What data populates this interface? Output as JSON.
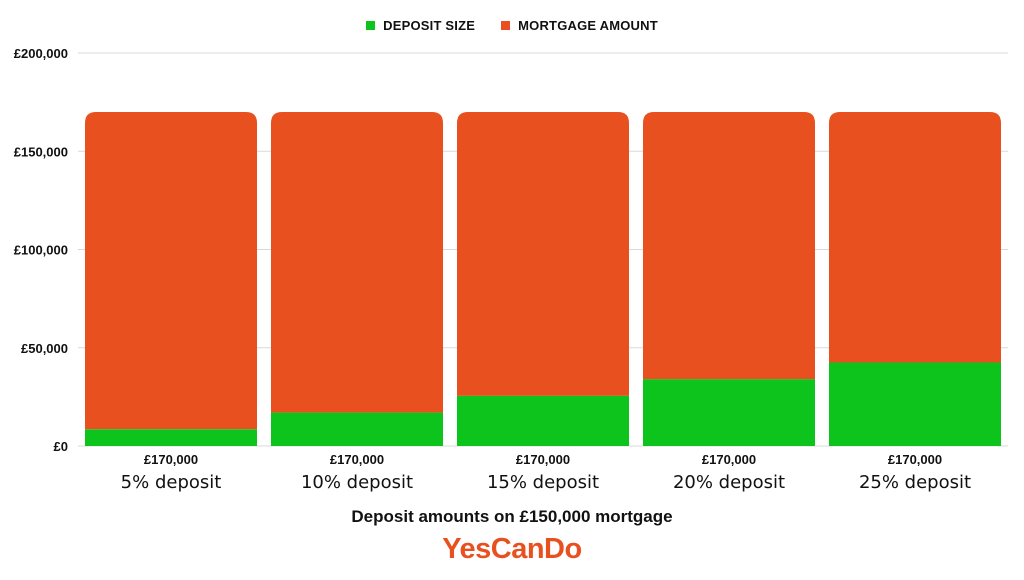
{
  "legend": [
    {
      "label": "DEPOSIT SIZE",
      "color": "#0cc41c"
    },
    {
      "label": "MORTGAGE AMOUNT",
      "color": "#e8511f"
    }
  ],
  "chart_data": {
    "type": "bar",
    "stacked": true,
    "categories": [
      "5% deposit",
      "10% deposit",
      "15% deposit",
      "20% deposit",
      "25% deposit"
    ],
    "series": [
      {
        "name": "DEPOSIT SIZE",
        "color": "#0cc41c",
        "values": [
          8500,
          17000,
          25500,
          34000,
          42500
        ]
      },
      {
        "name": "MORTGAGE AMOUNT",
        "color": "#e8511f",
        "values": [
          161500,
          153000,
          144500,
          136000,
          127500
        ]
      }
    ],
    "totals_labels": [
      "£170,000",
      "£170,000",
      "£170,000",
      "£170,000",
      "£170,000"
    ],
    "yticks": [
      "£0",
      "£50,000",
      "£100,000",
      "£150,000",
      "£200,000"
    ],
    "ylim": [
      0,
      200000
    ],
    "grid": true,
    "legend_position": "top-center",
    "title": "Deposit amounts on £150,000 mortgage",
    "xlabel": "",
    "ylabel": ""
  },
  "brand": {
    "logo_text": "YesCanDo",
    "logo_color": "#e8511f"
  }
}
